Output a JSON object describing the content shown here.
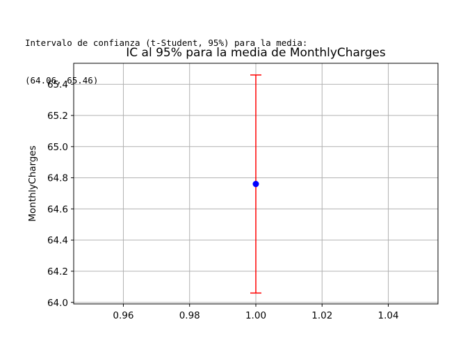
{
  "output": {
    "line1": "Intervalo de confianza (t-Student, 95%) para la media:",
    "line2": "(64.06, 65.46)"
  },
  "chart_data": {
    "type": "errorbar",
    "title": "IC al 95% para la media de MonthlyCharges",
    "xlabel": "",
    "ylabel": "MonthlyCharges",
    "xlim": [
      0.945,
      1.055
    ],
    "ylim": [
      63.99,
      65.535
    ],
    "xticks": [
      0.96,
      0.98,
      1.0,
      1.02,
      1.04
    ],
    "xtick_labels": [
      "0.96",
      "0.98",
      "1.00",
      "1.02",
      "1.04"
    ],
    "yticks": [
      64.0,
      64.2,
      64.4,
      64.6,
      64.8,
      65.0,
      65.2,
      65.4
    ],
    "ytick_labels": [
      "64.0",
      "64.2",
      "64.4",
      "64.6",
      "64.8",
      "65.0",
      "65.2",
      "65.4"
    ],
    "grid": true,
    "point": {
      "x": 1.0,
      "y": 64.76
    },
    "interval": {
      "lower": 64.06,
      "upper": 65.46
    },
    "colors": {
      "marker": "#0000ff",
      "errorbar": "#ff0000",
      "grid": "#b0b0b0"
    }
  }
}
